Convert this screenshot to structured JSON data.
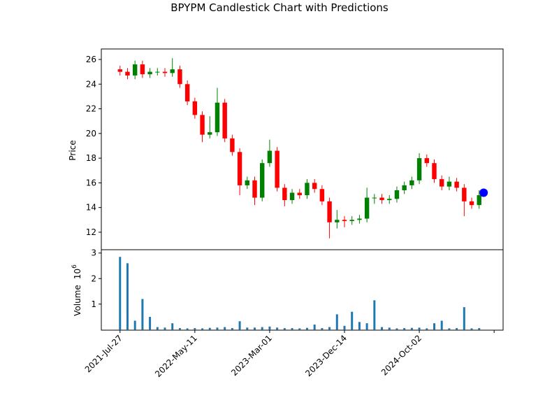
{
  "chart_data": {
    "type": "candlestick",
    "title": "BPYPM Candlestick Chart with Predictions",
    "ylabel": "Price",
    "x": [
      0,
      20,
      40,
      60,
      80,
      100,
      120,
      140,
      160,
      180,
      200,
      220,
      240,
      260,
      280,
      300,
      320,
      340,
      360,
      380,
      400,
      420,
      440,
      460,
      480,
      500,
      520,
      540,
      560,
      580,
      600,
      620,
      640,
      660,
      680,
      700,
      720,
      740,
      760,
      780,
      800,
      820,
      840,
      860,
      880,
      900,
      920,
      940,
      960
    ],
    "open": [
      25.2,
      25.0,
      24.7,
      25.6,
      24.8,
      25.0,
      25.0,
      24.9,
      25.2,
      24.0,
      22.6,
      21.5,
      19.9,
      20.1,
      22.5,
      19.6,
      18.5,
      15.8,
      16.2,
      14.8,
      17.6,
      18.6,
      15.6,
      14.6,
      15.2,
      15.0,
      16.0,
      15.5,
      14.5,
      12.8,
      13.0,
      12.9,
      13.0,
      13.1,
      14.8,
      14.8,
      14.6,
      14.7,
      15.4,
      15.8,
      16.2,
      18.0,
      17.6,
      16.3,
      15.7,
      16.1,
      15.6,
      14.5,
      14.2
    ],
    "high": [
      25.5,
      25.3,
      25.9,
      25.9,
      25.3,
      25.3,
      25.3,
      26.1,
      25.5,
      24.3,
      22.9,
      21.8,
      21.4,
      23.7,
      22.8,
      19.9,
      18.8,
      16.5,
      16.5,
      17.9,
      19.5,
      18.9,
      15.9,
      15.5,
      15.5,
      16.3,
      16.3,
      15.8,
      14.8,
      13.8,
      13.3,
      13.3,
      13.4,
      15.6,
      15.1,
      15.1,
      15.0,
      15.7,
      16.1,
      16.5,
      18.4,
      18.3,
      17.9,
      16.6,
      16.5,
      16.4,
      15.9,
      14.8,
      15.4
    ],
    "low": [
      24.7,
      24.4,
      24.4,
      24.5,
      24.5,
      24.7,
      24.6,
      24.6,
      23.7,
      22.3,
      21.2,
      19.3,
      19.6,
      19.8,
      19.3,
      18.2,
      15.0,
      15.5,
      14.2,
      14.5,
      17.3,
      15.3,
      14.1,
      14.3,
      14.7,
      14.7,
      15.2,
      14.2,
      11.5,
      12.3,
      12.4,
      12.6,
      12.7,
      12.8,
      14.3,
      14.3,
      14.3,
      14.4,
      15.1,
      15.5,
      15.9,
      17.3,
      16.0,
      15.4,
      15.4,
      15.3,
      13.3,
      13.9,
      13.9
    ],
    "close": [
      25.0,
      24.7,
      25.6,
      24.8,
      25.0,
      25.0,
      24.9,
      25.2,
      24.0,
      22.6,
      21.5,
      19.9,
      20.1,
      22.5,
      19.6,
      18.5,
      15.8,
      16.2,
      14.8,
      17.6,
      18.6,
      15.6,
      14.6,
      15.2,
      15.0,
      16.0,
      15.5,
      14.5,
      12.8,
      13.0,
      12.9,
      13.0,
      13.1,
      14.8,
      14.8,
      14.6,
      14.7,
      15.4,
      15.8,
      16.2,
      18.0,
      17.6,
      16.3,
      15.7,
      16.1,
      15.6,
      14.5,
      14.2,
      15.0
    ],
    "up_color": "green",
    "down_color": "red",
    "ylim": [
      10.58,
      26.85
    ],
    "yticks": [
      12,
      14,
      16,
      18,
      20,
      22,
      24,
      26
    ],
    "xlim": [
      -50,
      1024
    ],
    "xticks": [
      {
        "value": 0,
        "label": "2021-Jul-27"
      },
      {
        "value": 200,
        "label": "2022-May-11"
      },
      {
        "value": 400,
        "label": "2023-Mar-01"
      },
      {
        "value": 600,
        "label": "2023-Dec-14"
      },
      {
        "value": 800,
        "label": "2024-Oct-02"
      },
      {
        "value": 1000,
        "label": null
      }
    ],
    "predictions": {
      "x": [
        972
      ],
      "values": [
        15.2
      ],
      "color": "blue"
    },
    "volume": {
      "ylabel": "Volume",
      "scale_base": "10",
      "scale_exponent": "6",
      "color": "#1f77b4",
      "values": [
        2.85,
        2.6,
        0.35,
        1.2,
        0.5,
        0.1,
        0.08,
        0.25,
        0.06,
        0.05,
        0.06,
        0.05,
        0.07,
        0.08,
        0.1,
        0.06,
        0.33,
        0.08,
        0.08,
        0.1,
        0.12,
        0.08,
        0.06,
        0.06,
        0.05,
        0.07,
        0.2,
        0.06,
        0.1,
        0.6,
        0.15,
        0.7,
        0.3,
        0.25,
        1.15,
        0.1,
        0.08,
        0.05,
        0.06,
        0.07,
        0.08,
        0.05,
        0.25,
        0.35,
        0.05,
        0.06,
        0.88,
        0.05,
        0.06
      ],
      "ylim": [
        -0.02,
        3.13
      ],
      "yticks": [
        1,
        2,
        3
      ]
    }
  }
}
